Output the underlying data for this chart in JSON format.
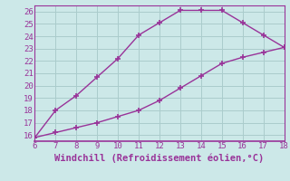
{
  "xlabel": "Windchill (Refroidissement éolien,°C)",
  "line1_x": [
    6,
    7,
    8,
    9,
    10,
    11,
    12,
    13,
    14,
    15,
    16,
    17,
    18
  ],
  "line1_y": [
    15.8,
    18.0,
    19.2,
    20.7,
    22.2,
    24.1,
    25.1,
    26.1,
    26.1,
    26.1,
    25.1,
    24.1,
    23.1
  ],
  "line2_x": [
    6,
    7,
    8,
    9,
    10,
    11,
    12,
    13,
    14,
    15,
    16,
    17,
    18
  ],
  "line2_y": [
    15.8,
    16.2,
    16.6,
    17.0,
    17.5,
    18.0,
    18.8,
    19.8,
    20.8,
    21.8,
    22.3,
    22.7,
    23.1
  ],
  "line_color": "#993399",
  "bg_color": "#cce8e8",
  "grid_color": "#aacccc",
  "xlim": [
    6,
    18
  ],
  "ylim": [
    15.5,
    26.5
  ],
  "xticks": [
    6,
    7,
    8,
    9,
    10,
    11,
    12,
    13,
    14,
    15,
    16,
    17,
    18
  ],
  "yticks": [
    16,
    17,
    18,
    19,
    20,
    21,
    22,
    23,
    24,
    25,
    26
  ],
  "marker": "+",
  "markersize": 4,
  "markeredgewidth": 1.2,
  "linewidth": 1.0,
  "tick_fontsize": 6.5,
  "xlabel_fontsize": 7.5
}
